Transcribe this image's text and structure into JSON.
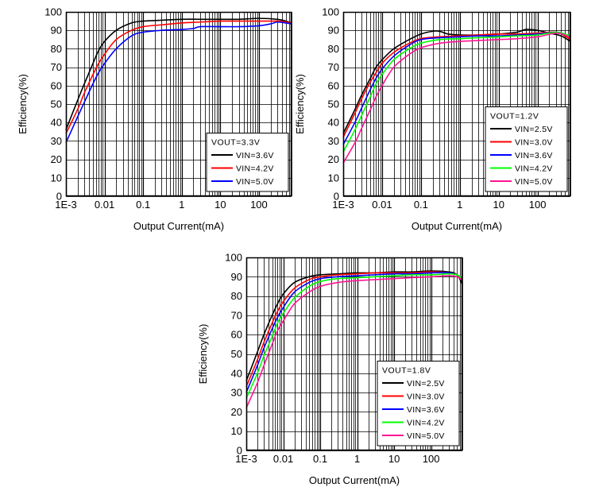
{
  "chart_data": [
    {
      "type": "line",
      "xscale": "log",
      "xlabel": "Output Current(mA)",
      "ylabel": "Efficiency(%)",
      "xlim": [
        0.001,
        700
      ],
      "ylim": [
        0,
        100
      ],
      "xticks": [
        {
          "v": 0.001,
          "label": "1E-3"
        },
        {
          "v": 0.01,
          "label": "0.01"
        },
        {
          "v": 0.1,
          "label": "0.1"
        },
        {
          "v": 1,
          "label": "1"
        },
        {
          "v": 10,
          "label": "10"
        },
        {
          "v": 100,
          "label": "100"
        }
      ],
      "yticks": [
        0,
        10,
        20,
        30,
        40,
        50,
        60,
        70,
        80,
        90,
        100
      ],
      "grid": true,
      "legend": {
        "title": "VOUT=3.3V",
        "placement": "bottom-right"
      },
      "series": [
        {
          "name": "VIN=3.6V",
          "color": "#000000",
          "x": [
            0.001,
            0.002,
            0.003,
            0.005,
            0.007,
            0.01,
            0.02,
            0.05,
            0.1,
            0.3,
            1,
            3,
            10,
            30,
            100,
            300,
            500,
            700
          ],
          "y": [
            36,
            52,
            61,
            72,
            79,
            84,
            90,
            94,
            95,
            95.5,
            96,
            96,
            96,
            96,
            96.5,
            96,
            95,
            94
          ]
        },
        {
          "name": "VIN=4.2V",
          "color": "#ff0000",
          "x": [
            0.001,
            0.002,
            0.003,
            0.005,
            0.007,
            0.01,
            0.02,
            0.05,
            0.1,
            0.3,
            1,
            3,
            10,
            30,
            100,
            300,
            500,
            700
          ],
          "y": [
            34,
            47,
            56,
            66,
            72,
            77,
            85,
            90,
            92,
            93,
            94,
            94.5,
            95,
            95,
            95,
            95,
            94.5,
            94
          ]
        },
        {
          "name": "VIN=5.0V",
          "color": "#0000ff",
          "x": [
            0.001,
            0.002,
            0.003,
            0.005,
            0.007,
            0.01,
            0.02,
            0.05,
            0.1,
            0.3,
            1,
            2,
            3,
            10,
            30,
            100,
            200,
            300,
            500,
            700
          ],
          "y": [
            29,
            43,
            51,
            61,
            67,
            72,
            80,
            87,
            89,
            90,
            90.5,
            91,
            92,
            92,
            92,
            92.5,
            93.5,
            94.5,
            94,
            93.5
          ]
        }
      ]
    },
    {
      "type": "line",
      "xscale": "log",
      "xlabel": "Output Current(mA)",
      "ylabel": "Efficiency(%)",
      "xlim": [
        0.001,
        700
      ],
      "ylim": [
        0,
        100
      ],
      "xticks": [
        {
          "v": 0.001,
          "label": "1E-3"
        },
        {
          "v": 0.01,
          "label": "0.01"
        },
        {
          "v": 0.1,
          "label": "0.1"
        },
        {
          "v": 1,
          "label": "1"
        },
        {
          "v": 10,
          "label": "10"
        },
        {
          "v": 100,
          "label": "100"
        }
      ],
      "yticks": [
        0,
        10,
        20,
        30,
        40,
        50,
        60,
        70,
        80,
        90,
        100
      ],
      "grid": true,
      "legend": {
        "title": "VOUT=1.2V",
        "placement": "bottom-right"
      },
      "series": [
        {
          "name": "VIN=2.5V",
          "color": "#000000",
          "x": [
            0.001,
            0.002,
            0.003,
            0.005,
            0.007,
            0.01,
            0.02,
            0.05,
            0.1,
            0.2,
            0.3,
            0.5,
            1,
            3,
            10,
            30,
            50,
            100,
            200,
            400,
            700
          ],
          "y": [
            34,
            47,
            55,
            64,
            70,
            74,
            80,
            85,
            88,
            89.5,
            89.5,
            88,
            87.5,
            87.5,
            88,
            89,
            90.5,
            90,
            88.5,
            87,
            84
          ]
        },
        {
          "name": "VIN=3.0V",
          "color": "#ff0000",
          "x": [
            0.001,
            0.002,
            0.003,
            0.005,
            0.007,
            0.01,
            0.02,
            0.05,
            0.1,
            0.3,
            1,
            3,
            10,
            30,
            100,
            300,
            500,
            700
          ],
          "y": [
            32,
            45,
            53,
            62,
            67,
            72,
            78,
            83,
            85.5,
            86.5,
            87,
            87.5,
            88,
            88,
            88.5,
            89,
            87,
            85
          ]
        },
        {
          "name": "VIN=3.6V",
          "color": "#0000ff",
          "x": [
            0.001,
            0.002,
            0.003,
            0.005,
            0.007,
            0.01,
            0.02,
            0.05,
            0.1,
            0.3,
            1,
            3,
            10,
            30,
            100,
            300,
            500,
            700
          ],
          "y": [
            28,
            40,
            48,
            58,
            64,
            69,
            76,
            82,
            85,
            86,
            86.5,
            87,
            87,
            87.5,
            88,
            89,
            88,
            86.5
          ]
        },
        {
          "name": "VIN=4.2V",
          "color": "#00ff00",
          "x": [
            0.001,
            0.002,
            0.003,
            0.005,
            0.007,
            0.01,
            0.02,
            0.05,
            0.1,
            0.3,
            1,
            3,
            10,
            30,
            100,
            300,
            500,
            700
          ],
          "y": [
            24,
            36,
            44,
            54,
            61,
            66,
            74,
            80,
            83,
            85,
            85.5,
            86,
            86.5,
            87,
            87.5,
            89,
            88,
            87
          ]
        },
        {
          "name": "VIN=5.0V",
          "color": "#ff1493",
          "x": [
            0.001,
            0.002,
            0.003,
            0.005,
            0.007,
            0.01,
            0.02,
            0.05,
            0.1,
            0.3,
            1,
            3,
            10,
            30,
            100,
            300,
            500,
            700
          ],
          "y": [
            18,
            29,
            37,
            47,
            54,
            60,
            70,
            77,
            80.5,
            83,
            84,
            84.5,
            85,
            85.5,
            86.5,
            88.5,
            87.5,
            86
          ]
        }
      ]
    },
    {
      "type": "line",
      "xscale": "log",
      "xlabel": "Output Current(mA)",
      "ylabel": "Efficiency(%)",
      "xlim": [
        0.001,
        700
      ],
      "ylim": [
        0,
        100
      ],
      "xticks": [
        {
          "v": 0.001,
          "label": "1E-3"
        },
        {
          "v": 0.01,
          "label": "0.01"
        },
        {
          "v": 0.1,
          "label": "0.1"
        },
        {
          "v": 1,
          "label": "1"
        },
        {
          "v": 10,
          "label": "10"
        },
        {
          "v": 100,
          "label": "100"
        }
      ],
      "yticks": [
        0,
        10,
        20,
        30,
        40,
        50,
        60,
        70,
        80,
        90,
        100
      ],
      "grid": true,
      "legend": {
        "title": "VOUT=1.8V",
        "placement": "bottom-right"
      },
      "series": [
        {
          "name": "VIN=2.5V",
          "color": "#000000",
          "x": [
            0.001,
            0.002,
            0.003,
            0.005,
            0.007,
            0.01,
            0.02,
            0.05,
            0.1,
            0.3,
            1,
            3,
            10,
            30,
            100,
            300,
            500,
            700
          ],
          "y": [
            36,
            51,
            60,
            70,
            76,
            81,
            87,
            90,
            91,
            91.5,
            92,
            92,
            92.5,
            92.5,
            93,
            92.5,
            91,
            86
          ]
        },
        {
          "name": "VIN=3.0V",
          "color": "#ff0000",
          "x": [
            0.001,
            0.002,
            0.003,
            0.005,
            0.007,
            0.01,
            0.02,
            0.05,
            0.1,
            0.3,
            1,
            3,
            10,
            30,
            100,
            300,
            500,
            700
          ],
          "y": [
            33,
            47,
            56,
            66,
            72,
            77,
            84,
            88.5,
            90,
            91,
            91.5,
            92,
            92,
            92,
            92.5,
            92,
            91,
            88
          ]
        },
        {
          "name": "VIN=3.6V",
          "color": "#0000ff",
          "x": [
            0.001,
            0.002,
            0.003,
            0.005,
            0.007,
            0.01,
            0.02,
            0.05,
            0.1,
            0.3,
            1,
            3,
            10,
            30,
            100,
            300,
            500,
            700
          ],
          "y": [
            30,
            44,
            53,
            63,
            69,
            74,
            82,
            87,
            89,
            90,
            90.5,
            91,
            91.5,
            91.5,
            92,
            92,
            91,
            89
          ]
        },
        {
          "name": "VIN=4.2V",
          "color": "#00ff00",
          "x": [
            0.001,
            0.002,
            0.003,
            0.005,
            0.007,
            0.01,
            0.02,
            0.05,
            0.1,
            0.3,
            1,
            3,
            10,
            30,
            100,
            300,
            500,
            700
          ],
          "y": [
            27,
            40,
            49,
            59,
            66,
            71,
            79,
            85,
            87.5,
            89,
            89.5,
            90,
            90.5,
            91,
            91,
            91.5,
            91,
            89
          ]
        },
        {
          "name": "VIN=5.0V",
          "color": "#ff1493",
          "x": [
            0.001,
            0.002,
            0.003,
            0.005,
            0.007,
            0.01,
            0.02,
            0.05,
            0.1,
            0.3,
            1,
            3,
            10,
            30,
            100,
            300,
            500,
            700
          ],
          "y": [
            22,
            35,
            44,
            55,
            62,
            67,
            76,
            82,
            85,
            87,
            88,
            88.5,
            89,
            89.5,
            90,
            90.5,
            90,
            88
          ]
        }
      ]
    }
  ]
}
